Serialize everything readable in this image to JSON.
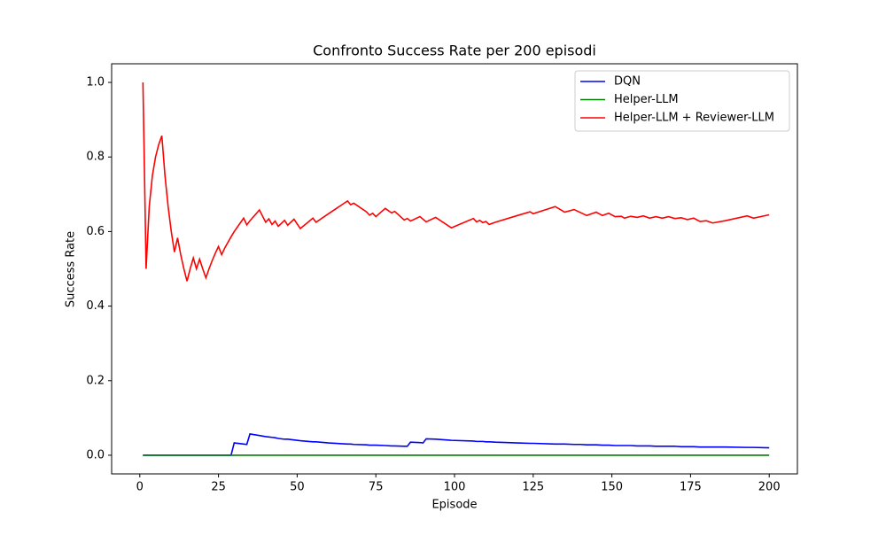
{
  "chart_data": {
    "type": "line",
    "title": "Confronto Success Rate per 200 episodi",
    "xlabel": "Episode",
    "ylabel": "Success Rate",
    "x": [
      1,
      2,
      3,
      4,
      5,
      6,
      7,
      8,
      9,
      10,
      11,
      12,
      13,
      14,
      15,
      16,
      17,
      18,
      19,
      20,
      21,
      22,
      23,
      24,
      25,
      26,
      27,
      28,
      29,
      30,
      33,
      34,
      35,
      38,
      40,
      41,
      42,
      43,
      44,
      46,
      47,
      49,
      51,
      55,
      56,
      60,
      66,
      67,
      68,
      72,
      73,
      74,
      75,
      78,
      80,
      81,
      84,
      85,
      86,
      89,
      90,
      91,
      94,
      99,
      106,
      107,
      108,
      109,
      110,
      111,
      113,
      120,
      124,
      125,
      132,
      135,
      138,
      140,
      142,
      145,
      147,
      149,
      151,
      153,
      154,
      156,
      158,
      160,
      162,
      164,
      166,
      168,
      170,
      172,
      174,
      176,
      178,
      180,
      182,
      186,
      193,
      195,
      200
    ],
    "series": [
      {
        "name": "DQN",
        "color": "#0000ff",
        "values": [
          0,
          0,
          0,
          0,
          0,
          0,
          0,
          0,
          0,
          0,
          0,
          0,
          0,
          0,
          0,
          0,
          0,
          0,
          0,
          0,
          0,
          0,
          0,
          0,
          0,
          0,
          0,
          0,
          0,
          0.033,
          0.03,
          0.029,
          0.057,
          0.053,
          0.05,
          0.049,
          0.048,
          0.047,
          0.045,
          0.043,
          0.043,
          0.041,
          0.039,
          0.036,
          0.036,
          0.033,
          0.03,
          0.03,
          0.029,
          0.028,
          0.027,
          0.027,
          0.027,
          0.026,
          0.025,
          0.025,
          0.024,
          0.024,
          0.035,
          0.034,
          0.033,
          0.044,
          0.043,
          0.04,
          0.038,
          0.037,
          0.037,
          0.037,
          0.036,
          0.036,
          0.035,
          0.033,
          0.032,
          0.032,
          0.03,
          0.03,
          0.029,
          0.029,
          0.028,
          0.028,
          0.027,
          0.027,
          0.026,
          0.026,
          0.026,
          0.026,
          0.025,
          0.025,
          0.025,
          0.024,
          0.024,
          0.024,
          0.024,
          0.023,
          0.023,
          0.023,
          0.022,
          0.022,
          0.022,
          0.022,
          0.021,
          0.021,
          0.02
        ]
      },
      {
        "name": "Helper-LLM",
        "color": "#008000",
        "values": [
          0,
          0,
          0,
          0,
          0,
          0,
          0,
          0,
          0,
          0,
          0,
          0,
          0,
          0,
          0,
          0,
          0,
          0,
          0,
          0,
          0,
          0,
          0,
          0,
          0,
          0,
          0,
          0,
          0,
          0,
          0,
          0,
          0,
          0,
          0,
          0,
          0,
          0,
          0,
          0,
          0,
          0,
          0,
          0,
          0,
          0,
          0,
          0,
          0,
          0,
          0,
          0,
          0,
          0,
          0,
          0,
          0,
          0,
          0,
          0,
          0,
          0,
          0,
          0,
          0,
          0,
          0,
          0,
          0,
          0,
          0,
          0,
          0,
          0,
          0,
          0,
          0,
          0,
          0,
          0,
          0,
          0,
          0,
          0,
          0,
          0,
          0,
          0,
          0,
          0,
          0,
          0,
          0,
          0,
          0,
          0,
          0,
          0,
          0,
          0,
          0,
          0,
          0
        ]
      },
      {
        "name": "Helper-LLM + Reviewer-LLM",
        "color": "#ff0000",
        "values": [
          1.0,
          0.5,
          0.667,
          0.75,
          0.8,
          0.833,
          0.857,
          0.75,
          0.667,
          0.6,
          0.545,
          0.583,
          0.538,
          0.5,
          0.467,
          0.5,
          0.529,
          0.5,
          0.526,
          0.5,
          0.476,
          0.5,
          0.522,
          0.542,
          0.56,
          0.538,
          0.556,
          0.571,
          0.586,
          0.6,
          0.636,
          0.618,
          0.629,
          0.658,
          0.625,
          0.634,
          0.619,
          0.628,
          0.614,
          0.63,
          0.617,
          0.633,
          0.608,
          0.636,
          0.625,
          0.648,
          0.682,
          0.672,
          0.676,
          0.653,
          0.644,
          0.649,
          0.64,
          0.662,
          0.65,
          0.654,
          0.631,
          0.635,
          0.628,
          0.64,
          0.633,
          0.626,
          0.638,
          0.61,
          0.635,
          0.626,
          0.63,
          0.624,
          0.627,
          0.619,
          0.625,
          0.643,
          0.653,
          0.648,
          0.667,
          0.652,
          0.659,
          0.651,
          0.643,
          0.652,
          0.643,
          0.649,
          0.64,
          0.641,
          0.636,
          0.641,
          0.638,
          0.642,
          0.636,
          0.64,
          0.636,
          0.64,
          0.635,
          0.637,
          0.632,
          0.636,
          0.627,
          0.629,
          0.623,
          0.629,
          0.642,
          0.636,
          0.645
        ]
      }
    ],
    "xlim": [
      -8.95,
      208.95
    ],
    "xticks": [
      0,
      25,
      50,
      75,
      100,
      125,
      150,
      175,
      200
    ],
    "ylim": [
      -0.05,
      1.05
    ],
    "yticks": [
      {
        "value": 0,
        "label": "0.0"
      },
      {
        "value": 0.2,
        "label": "0.2"
      },
      {
        "value": 0.4,
        "label": "0.4"
      },
      {
        "value": 0.6,
        "label": "0.6"
      },
      {
        "value": 0.8,
        "label": "0.8"
      },
      {
        "value": 1.0,
        "label": "1.0"
      }
    ],
    "legend": "upper right"
  }
}
